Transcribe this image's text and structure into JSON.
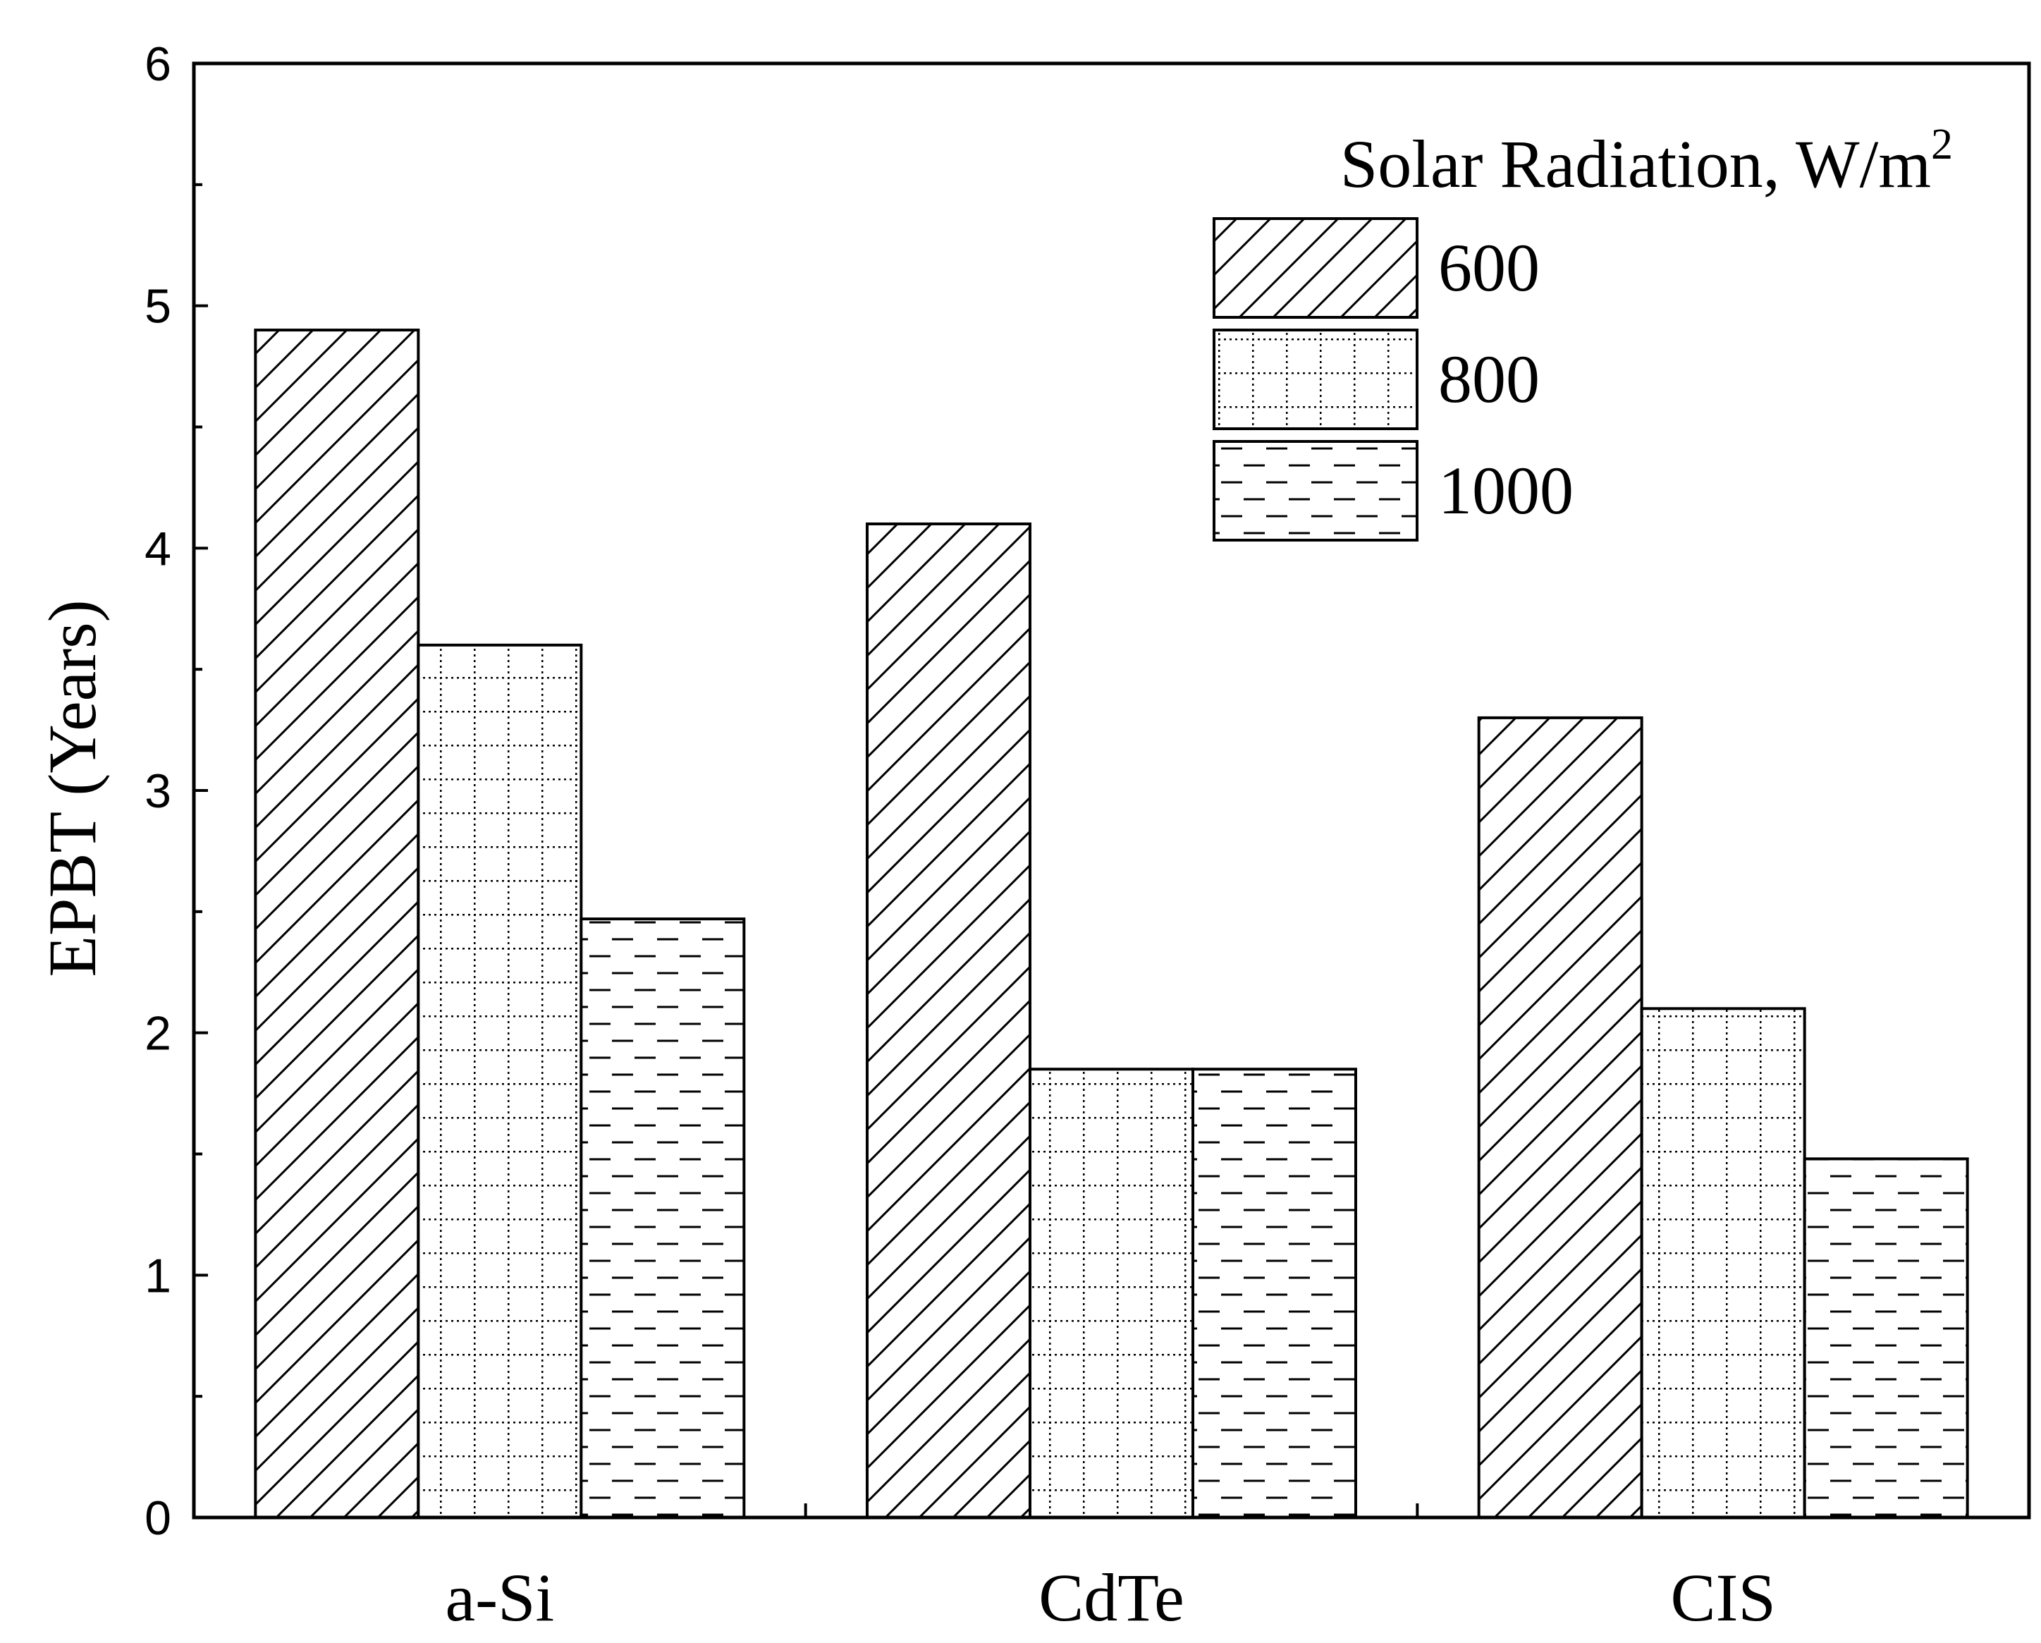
{
  "chart_data": {
    "type": "bar",
    "title": "",
    "xlabel": "",
    "ylabel": "EPBT (Years)",
    "ylim": [
      0,
      6
    ],
    "yticks": [
      "0",
      "1",
      "2",
      "3",
      "4",
      "5",
      "6"
    ],
    "categories": [
      "a-Si",
      "CdTe",
      "CIS"
    ],
    "legend_title": "Solar Radiation, W/m",
    "legend_title_sup": "2",
    "legend_position": "top-right",
    "grid": false,
    "series": [
      {
        "name": "600",
        "pattern": "diagonal-hatch",
        "values": [
          4.9,
          4.1,
          3.3
        ]
      },
      {
        "name": "800",
        "pattern": "dotted-grid",
        "values": [
          3.6,
          1.85,
          2.1
        ]
      },
      {
        "name": "1000",
        "pattern": "dashed-lines",
        "values": [
          2.47,
          1.85,
          1.48
        ]
      }
    ]
  }
}
